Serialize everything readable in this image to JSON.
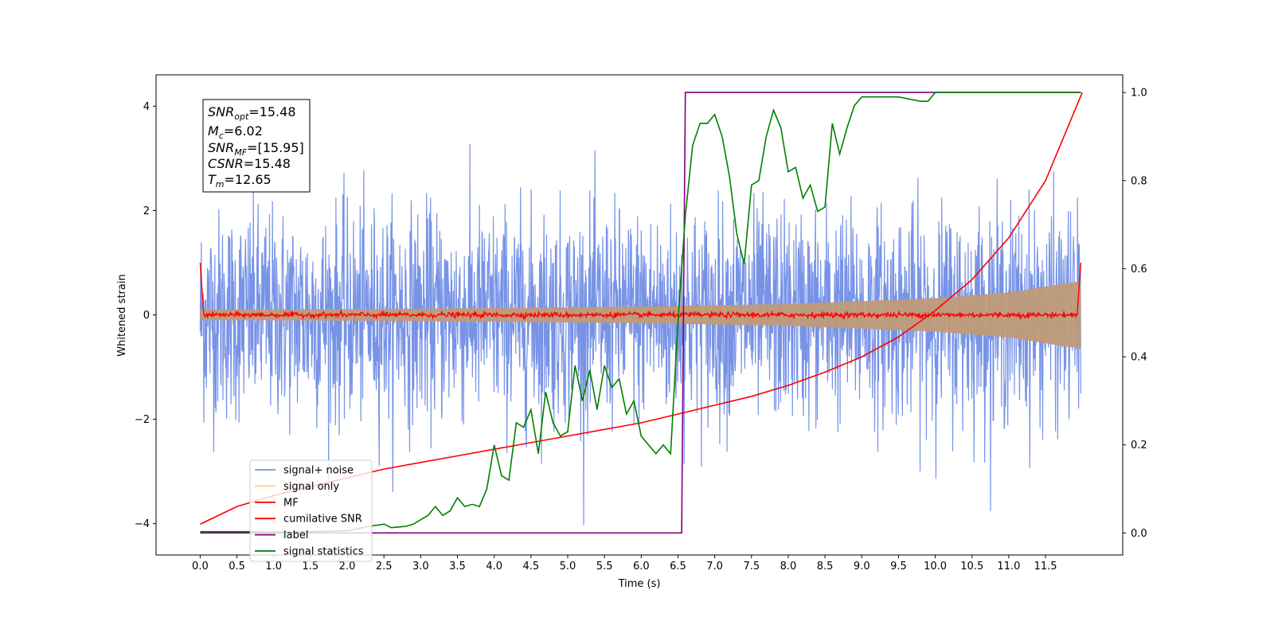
{
  "chart_data": {
    "type": "line",
    "xlabel": "Time (s)",
    "ylabel": "Whitened strain",
    "xlim": [
      -0.6,
      12.55
    ],
    "ylim": [
      -4.6,
      4.6
    ],
    "y2lim": [
      -0.05,
      1.04
    ],
    "grid": false,
    "legend_placement": "lower-left",
    "x_ticks": [
      "0.0",
      "0.5",
      "1.0",
      "1.5",
      "2.0",
      "2.5",
      "3.0",
      "3.5",
      "4.0",
      "4.5",
      "5.0",
      "5.5",
      "6.0",
      "6.5",
      "7.0",
      "7.5",
      "8.0",
      "8.5",
      "9.0",
      "9.5",
      "10.0",
      "10.5",
      "11.0",
      "11.5"
    ],
    "y_ticks": [
      "4",
      "2",
      "0",
      "−2",
      "−4"
    ],
    "y2_ticks": [
      "1.0",
      "0.8",
      "0.6",
      "0.4",
      "0.2",
      "0.0"
    ],
    "annotation": {
      "snr_opt": {
        "sym": "SNR",
        "sub": "opt",
        "value": "=15.48"
      },
      "mc": {
        "sym": "M",
        "sub": "c",
        "value": "=6.02"
      },
      "snr_mf": {
        "sym": "SNR",
        "sub": "MF",
        "value": "=[15.95]"
      },
      "csnr": {
        "sym": "CSNR",
        "value": "=15.48"
      },
      "tm": {
        "sym": "T",
        "sub": "m",
        "value": "=12.65"
      }
    },
    "series": [
      {
        "name": "signal+ noise",
        "color": "#7793e6",
        "axis": "left",
        "kind": "noise",
        "x_range": [
          0,
          11.98
        ],
        "amplitude_std": 1.0,
        "y_range": [
          -4.1,
          4.2
        ]
      },
      {
        "name": "signal only",
        "color": "#c09a78",
        "axis": "left",
        "kind": "chirp_envelope",
        "x": [
          0,
          2,
          4,
          6,
          8,
          10,
          11,
          11.98
        ],
        "envelope": [
          0.1,
          0.11,
          0.13,
          0.16,
          0.21,
          0.32,
          0.43,
          0.65
        ]
      },
      {
        "name": "MF",
        "color": "#ff0000",
        "axis": "left",
        "kind": "mf",
        "x": [
          0,
          0.05,
          11.93,
          11.98
        ],
        "y": [
          1.0,
          0.0,
          0.0,
          1.0
        ]
      },
      {
        "name": "cumilative SNR",
        "color": "#ff0000",
        "axis": "right",
        "x": [
          0,
          0.5,
          1,
          1.5,
          2,
          2.5,
          3,
          3.5,
          4,
          4.5,
          5,
          5.5,
          6,
          6.5,
          7,
          7.5,
          8,
          8.5,
          9,
          9.5,
          10,
          10.5,
          11,
          11.5,
          12
        ],
        "y": [
          0.02,
          0.06,
          0.085,
          0.105,
          0.125,
          0.145,
          0.16,
          0.175,
          0.19,
          0.205,
          0.22,
          0.235,
          0.25,
          0.27,
          0.29,
          0.31,
          0.335,
          0.365,
          0.4,
          0.445,
          0.505,
          0.575,
          0.67,
          0.8,
          1.0
        ]
      },
      {
        "name": "label",
        "color": "#800080",
        "axis": "right",
        "x": [
          0,
          6.55,
          6.6,
          11.98
        ],
        "y": [
          0.0,
          0.0,
          1.0,
          1.0
        ]
      },
      {
        "name": "signal statistics",
        "color": "#008000",
        "axis": "right",
        "x": [
          0,
          0.3,
          0.7,
          1.0,
          1.5,
          2.0,
          2.3,
          2.5,
          2.6,
          2.8,
          2.9,
          3.1,
          3.2,
          3.3,
          3.4,
          3.5,
          3.6,
          3.7,
          3.8,
          3.9,
          4.0,
          4.1,
          4.2,
          4.3,
          4.4,
          4.5,
          4.6,
          4.7,
          4.8,
          4.9,
          5.0,
          5.1,
          5.2,
          5.3,
          5.4,
          5.5,
          5.6,
          5.7,
          5.8,
          5.9,
          6.0,
          6.1,
          6.2,
          6.3,
          6.4,
          6.5,
          6.6,
          6.7,
          6.8,
          6.9,
          7.0,
          7.1,
          7.2,
          7.3,
          7.4,
          7.5,
          7.6,
          7.7,
          7.8,
          7.9,
          8.0,
          8.1,
          8.2,
          8.3,
          8.4,
          8.5,
          8.6,
          8.7,
          8.8,
          8.9,
          9.0,
          9.2,
          9.5,
          9.8,
          9.9,
          10.0,
          10.2,
          10.5,
          11.0,
          11.5,
          11.98
        ],
        "y": [
          0.003,
          0.003,
          0.003,
          0.002,
          0.003,
          0.005,
          0.015,
          0.02,
          0.012,
          0.015,
          0.02,
          0.04,
          0.06,
          0.04,
          0.05,
          0.08,
          0.06,
          0.065,
          0.06,
          0.1,
          0.2,
          0.13,
          0.12,
          0.25,
          0.24,
          0.28,
          0.18,
          0.32,
          0.25,
          0.22,
          0.23,
          0.38,
          0.3,
          0.37,
          0.28,
          0.38,
          0.33,
          0.35,
          0.27,
          0.3,
          0.22,
          0.2,
          0.18,
          0.2,
          0.18,
          0.48,
          0.72,
          0.88,
          0.93,
          0.93,
          0.95,
          0.9,
          0.81,
          0.68,
          0.61,
          0.79,
          0.8,
          0.9,
          0.96,
          0.92,
          0.82,
          0.83,
          0.76,
          0.79,
          0.73,
          0.74,
          0.93,
          0.86,
          0.92,
          0.97,
          0.99,
          0.99,
          0.99,
          0.98,
          0.98,
          1.0,
          1.0,
          1.0,
          1.0,
          1.0,
          1.0
        ]
      }
    ]
  }
}
